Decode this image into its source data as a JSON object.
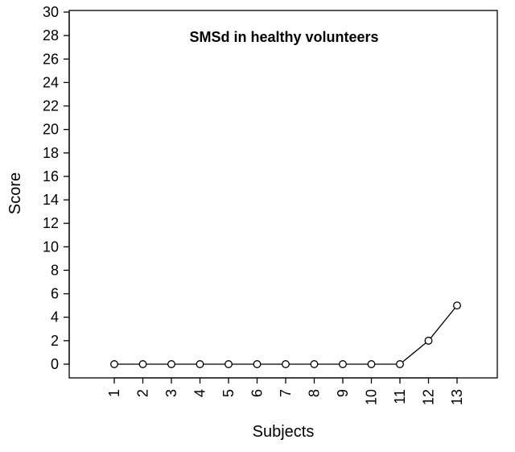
{
  "chart_data": {
    "type": "line",
    "title": "SMSd in healthy volunteers",
    "xlabel": "Subjects",
    "ylabel": "Score",
    "x": [
      1,
      2,
      3,
      4,
      5,
      6,
      7,
      8,
      9,
      10,
      11,
      12,
      13
    ],
    "x_tick_labels": [
      "1",
      "2",
      "3",
      "4",
      "5",
      "6",
      "7",
      "8",
      "9",
      "10",
      "11",
      "12",
      "13"
    ],
    "series": [
      {
        "values": [
          0,
          0,
          0,
          0,
          0,
          0,
          0,
          0,
          0,
          0,
          0,
          2,
          5
        ]
      }
    ],
    "ylim": [
      0,
      30
    ],
    "y_ticks": [
      0,
      2,
      4,
      6,
      8,
      10,
      12,
      14,
      16,
      18,
      20,
      22,
      24,
      26,
      28,
      30
    ],
    "x_tick_label_rotation": "vertical",
    "marker": "open-circle",
    "line_color": "#000000",
    "grid": false,
    "legend": "none"
  }
}
